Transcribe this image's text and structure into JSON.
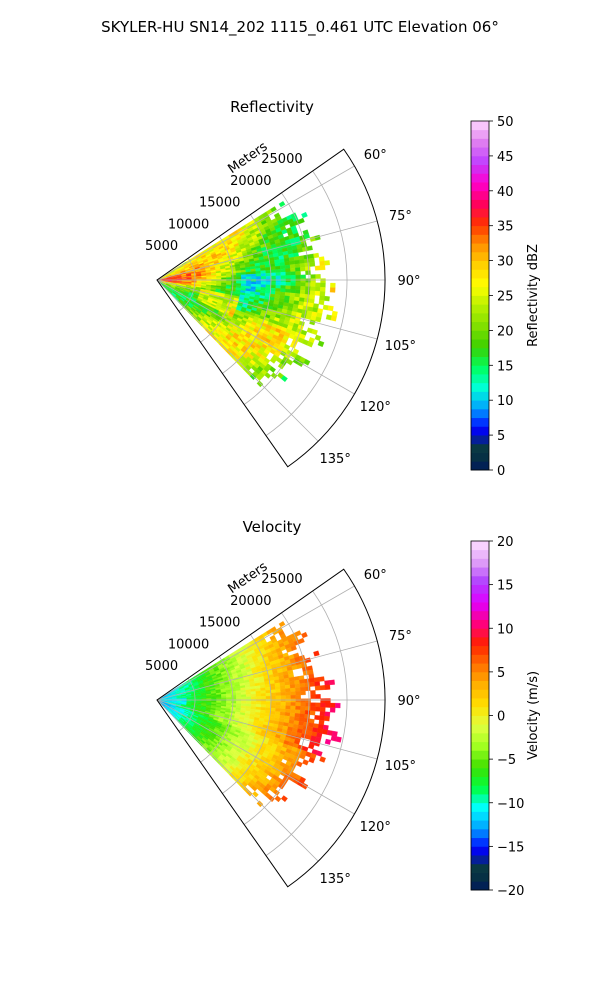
{
  "figure": {
    "title": "SKYLER-HU  SN14_202  1115_0.461 UTC Elevation 06°"
  },
  "chart_data": [
    {
      "type": "polar-sector",
      "title": "Reflectivity",
      "radial_label": "Meters",
      "radial_ticks": [
        "5000",
        "10000",
        "15000",
        "20000",
        "25000"
      ],
      "radial_tick_values": [
        5000,
        10000,
        15000,
        20000,
        25000
      ],
      "rlim": [
        0,
        30000
      ],
      "theta_ticks": [
        "60°",
        "75°",
        "90°",
        "105°",
        "120°",
        "135°"
      ],
      "theta_tick_values": [
        60,
        75,
        90,
        105,
        120,
        135
      ],
      "theta_lim": [
        55,
        145
      ],
      "grid": true,
      "field": "reflectivity",
      "colorbar": {
        "label": "Reflectivity dBZ",
        "range": [
          0,
          50
        ],
        "ticks": [
          "0",
          "5",
          "10",
          "15",
          "20",
          "25",
          "30",
          "35",
          "40",
          "45",
          "50"
        ],
        "tick_values": [
          0,
          5,
          10,
          15,
          20,
          25,
          30,
          35,
          40,
          45,
          50
        ],
        "colors": [
          "#001a5c",
          "#0a3c36",
          "#0000ff",
          "#00a0ff",
          "#00ffd8",
          "#00ff60",
          "#3cd000",
          "#80e000",
          "#b8f000",
          "#ffff00",
          "#ffd000",
          "#ff9000",
          "#ff3000",
          "#ff0060",
          "#ff00d0",
          "#c040ff",
          "#e080f0",
          "#ffd8ff"
        ]
      }
    },
    {
      "type": "polar-sector",
      "title": "Velocity",
      "radial_label": "Meters",
      "radial_ticks": [
        "5000",
        "10000",
        "15000",
        "20000",
        "25000"
      ],
      "radial_tick_values": [
        5000,
        10000,
        15000,
        20000,
        25000
      ],
      "rlim": [
        0,
        30000
      ],
      "theta_ticks": [
        "60°",
        "75°",
        "90°",
        "105°",
        "120°",
        "135°"
      ],
      "theta_tick_values": [
        60,
        75,
        90,
        105,
        120,
        135
      ],
      "theta_lim": [
        55,
        145
      ],
      "grid": true,
      "field": "velocity",
      "colorbar": {
        "label": "Velocity (m/s)",
        "range": [
          -20,
          20
        ],
        "ticks": [
          "−20",
          "−15",
          "−10",
          "−5",
          "0",
          "5",
          "10",
          "15",
          "20"
        ],
        "tick_values": [
          -20,
          -15,
          -10,
          -5,
          0,
          5,
          10,
          15,
          20
        ],
        "colors": [
          "#001a5c",
          "#0a3c36",
          "#0000ff",
          "#00a0ff",
          "#00ffff",
          "#00ff40",
          "#40e000",
          "#a0ff20",
          "#e0ff40",
          "#ffe000",
          "#ffb000",
          "#ff7000",
          "#ff2000",
          "#ff0080",
          "#e000ff",
          "#b040ff",
          "#e0a0f8",
          "#ffe0ff"
        ]
      }
    }
  ]
}
